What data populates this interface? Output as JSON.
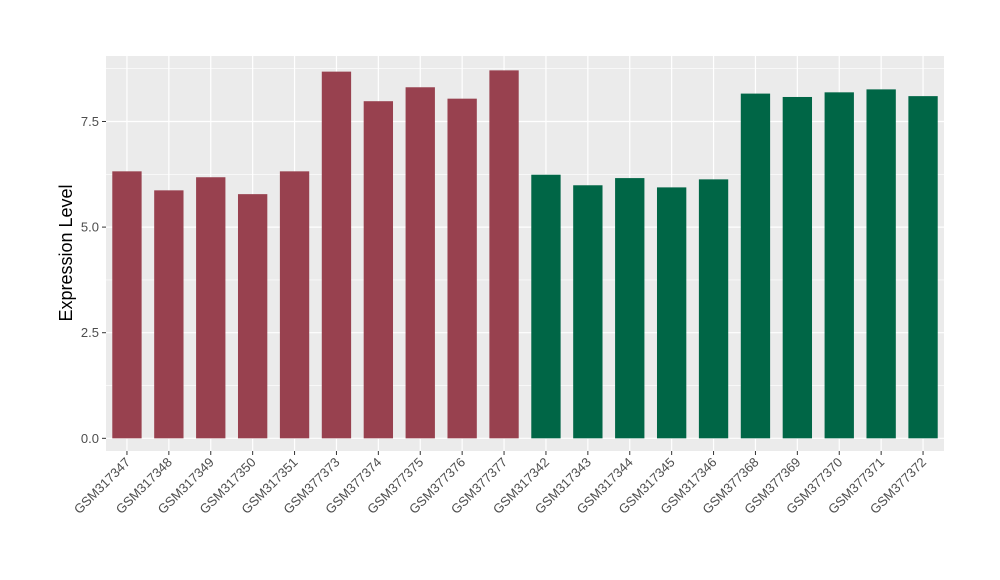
{
  "chart_data": {
    "type": "bar",
    "title": "",
    "xlabel": "",
    "ylabel": "Expression Level",
    "ylim": [
      -0.3,
      9.05
    ],
    "yticks": [
      0.0,
      2.5,
      5.0,
      7.5
    ],
    "ytick_labels": [
      "0.0",
      "2.5",
      "5.0",
      "7.5"
    ],
    "grid": true,
    "legend": "none",
    "panel_background": "#ebebeb",
    "grid_color": "#ffffff",
    "categories": [
      "GSM317347",
      "GSM317348",
      "GSM317349",
      "GSM317350",
      "GSM317351",
      "GSM377373",
      "GSM377374",
      "GSM377375",
      "GSM377376",
      "GSM377377",
      "GSM317342",
      "GSM317343",
      "GSM317344",
      "GSM317345",
      "GSM317346",
      "GSM377368",
      "GSM377369",
      "GSM377370",
      "GSM377371",
      "GSM377372"
    ],
    "values": [
      6.32,
      5.87,
      6.18,
      5.78,
      6.32,
      8.68,
      7.98,
      8.31,
      8.04,
      8.71,
      6.24,
      5.99,
      6.16,
      5.94,
      6.13,
      8.16,
      8.08,
      8.19,
      8.26,
      8.1
    ],
    "colors": [
      "#98414f",
      "#98414f",
      "#98414f",
      "#98414f",
      "#98414f",
      "#98414f",
      "#98414f",
      "#98414f",
      "#98414f",
      "#98414f",
      "#006646",
      "#006646",
      "#006646",
      "#006646",
      "#006646",
      "#006646",
      "#006646",
      "#006646",
      "#006646",
      "#006646"
    ]
  }
}
